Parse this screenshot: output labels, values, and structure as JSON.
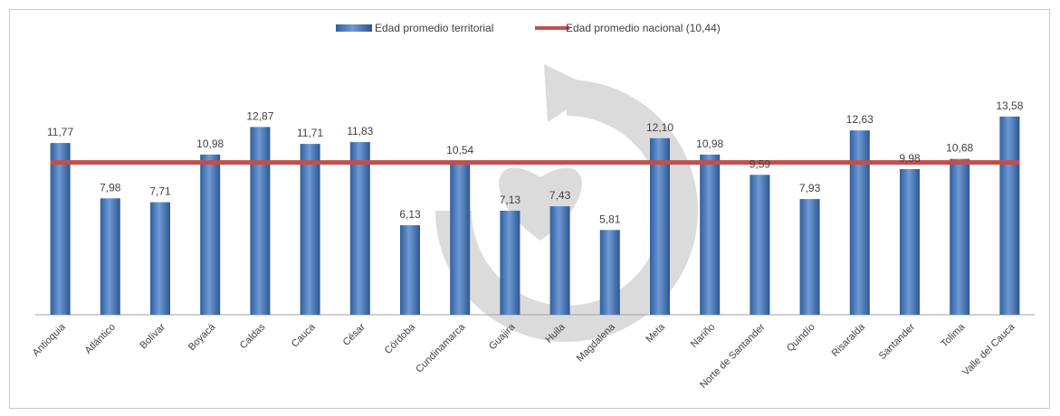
{
  "chart_data": {
    "type": "bar",
    "categories": [
      "Antioquia",
      "Atlántico",
      "Bolívar",
      "Boyacá",
      "Caldas",
      "Cauca",
      "César",
      "Córdoba",
      "Cundinamarca",
      "Guajira",
      "Huila",
      "Magdalena",
      "Meta",
      "Nariño",
      "Norte de Santander",
      "Quindío",
      "Risaralda",
      "Santander",
      "Tolima",
      "Valle del Cauca"
    ],
    "values": [
      11.77,
      7.98,
      7.71,
      10.98,
      12.87,
      11.71,
      11.83,
      6.13,
      10.54,
      7.13,
      7.43,
      5.81,
      12.1,
      10.98,
      9.59,
      7.93,
      12.63,
      9.98,
      10.68,
      13.58
    ],
    "value_labels": [
      "11,77",
      "7,98",
      "7,71",
      "10,98",
      "12,87",
      "11,71",
      "11,83",
      "6,13",
      "10,54",
      "7,13",
      "7,43",
      "5,81",
      "12,10",
      "10,98",
      "9,59",
      "7,93",
      "12,63",
      "9,98",
      "10,68",
      "13,58"
    ],
    "series": [
      {
        "name": "Edad promedio territorial",
        "type": "bar",
        "color": "#4f81bd"
      },
      {
        "name": "Edad promedio nacional (10,44)",
        "type": "line",
        "value": 10.44,
        "color": "#c0504d"
      }
    ],
    "title": "",
    "xlabel": "",
    "ylabel": "",
    "ylim": [
      0,
      15
    ],
    "grid": false,
    "legend": "top-center"
  }
}
